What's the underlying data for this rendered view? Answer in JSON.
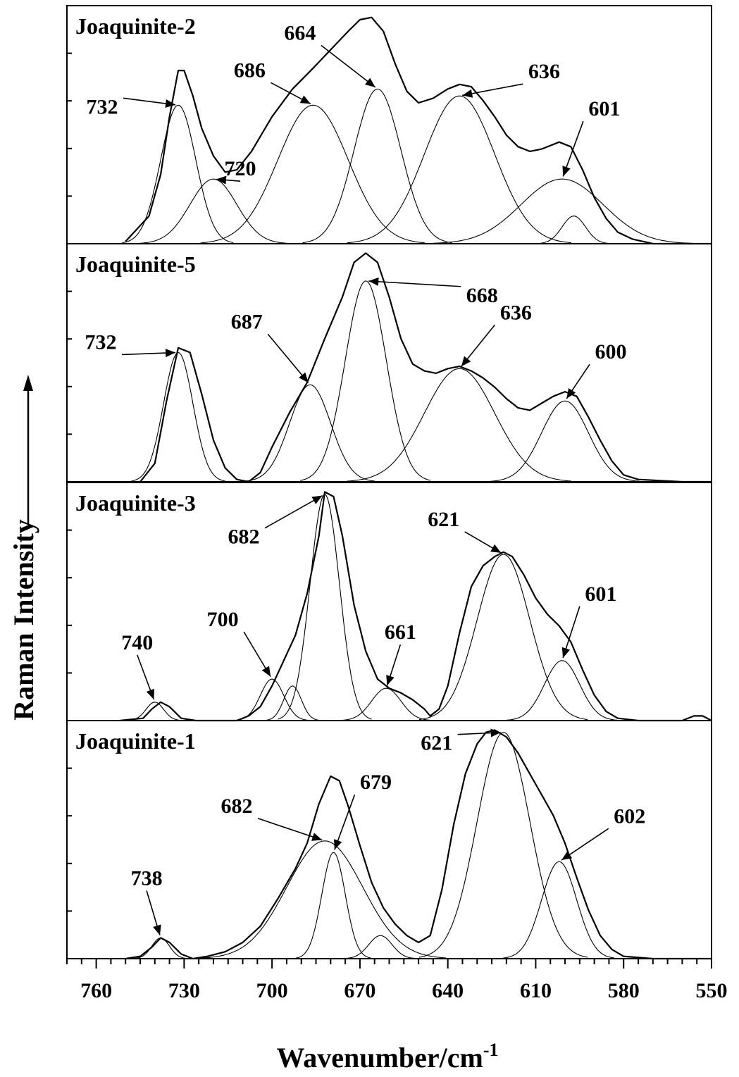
{
  "chart_data": {
    "type": "line",
    "xlabel": "Wavenumber/cm",
    "xlabel_sup": "-1",
    "ylabel": "Raman Intensity",
    "xlim": [
      770,
      550
    ],
    "x_reversed": true,
    "xticks": [
      760,
      730,
      700,
      670,
      640,
      610,
      580,
      550
    ],
    "grid": false,
    "panels": [
      {
        "name": "Joaquinite-2",
        "envelope": [
          [
            750,
            0.01
          ],
          [
            742,
            0.12
          ],
          [
            738,
            0.3
          ],
          [
            735,
            0.55
          ],
          [
            732,
            0.75
          ],
          [
            730,
            0.75
          ],
          [
            727,
            0.64
          ],
          [
            724,
            0.5
          ],
          [
            720,
            0.38
          ],
          [
            716,
            0.31
          ],
          [
            712,
            0.32
          ],
          [
            707,
            0.4
          ],
          [
            700,
            0.55
          ],
          [
            693,
            0.67
          ],
          [
            686,
            0.76
          ],
          [
            680,
            0.84
          ],
          [
            674,
            0.92
          ],
          [
            670,
            0.97
          ],
          [
            666,
            0.98
          ],
          [
            662,
            0.92
          ],
          [
            658,
            0.78
          ],
          [
            654,
            0.66
          ],
          [
            650,
            0.61
          ],
          [
            645,
            0.63
          ],
          [
            640,
            0.67
          ],
          [
            636,
            0.69
          ],
          [
            632,
            0.68
          ],
          [
            628,
            0.62
          ],
          [
            624,
            0.55
          ],
          [
            620,
            0.47
          ],
          [
            616,
            0.42
          ],
          [
            612,
            0.4
          ],
          [
            608,
            0.41
          ],
          [
            602,
            0.44
          ],
          [
            598,
            0.42
          ],
          [
            594,
            0.32
          ],
          [
            590,
            0.2
          ],
          [
            586,
            0.11
          ],
          [
            582,
            0.05
          ],
          [
            577,
            0.02
          ],
          [
            570,
            0.0
          ],
          [
            550,
            0.0
          ]
        ],
        "components": [
          {
            "center": 732,
            "height": 0.6,
            "width": 6
          },
          {
            "center": 720,
            "height": 0.28,
            "width": 8
          },
          {
            "center": 686,
            "height": 0.6,
            "width": 12
          },
          {
            "center": 664,
            "height": 0.67,
            "width": 8
          },
          {
            "center": 636,
            "height": 0.64,
            "width": 12
          },
          {
            "center": 601,
            "height": 0.28,
            "width": 14
          },
          {
            "center": 597,
            "height": 0.12,
            "width": 4
          }
        ],
        "annotations": [
          {
            "label": "732",
            "x": 732,
            "y": 0.6
          },
          {
            "label": "720",
            "x": 720,
            "y": 0.28
          },
          {
            "label": "686",
            "x": 686,
            "y": 0.6
          },
          {
            "label": "664",
            "x": 664,
            "y": 0.67
          },
          {
            "label": "636",
            "x": 636,
            "y": 0.64
          },
          {
            "label": "601",
            "x": 601,
            "y": 0.28
          }
        ]
      },
      {
        "name": "Joaquinite-5",
        "envelope": [
          [
            745,
            0.0
          ],
          [
            740,
            0.08
          ],
          [
            736,
            0.35
          ],
          [
            732,
            0.58
          ],
          [
            728,
            0.56
          ],
          [
            724,
            0.38
          ],
          [
            720,
            0.18
          ],
          [
            716,
            0.06
          ],
          [
            712,
            0.01
          ],
          [
            708,
            0.0
          ],
          [
            704,
            0.04
          ],
          [
            700,
            0.15
          ],
          [
            694,
            0.3
          ],
          [
            688,
            0.43
          ],
          [
            682,
            0.62
          ],
          [
            676,
            0.8
          ],
          [
            672,
            0.95
          ],
          [
            668,
            0.99
          ],
          [
            664,
            0.95
          ],
          [
            660,
            0.8
          ],
          [
            656,
            0.62
          ],
          [
            652,
            0.51
          ],
          [
            648,
            0.48
          ],
          [
            644,
            0.47
          ],
          [
            640,
            0.49
          ],
          [
            636,
            0.5
          ],
          [
            632,
            0.48
          ],
          [
            628,
            0.45
          ],
          [
            624,
            0.41
          ],
          [
            620,
            0.36
          ],
          [
            616,
            0.32
          ],
          [
            612,
            0.31
          ],
          [
            608,
            0.34
          ],
          [
            604,
            0.37
          ],
          [
            600,
            0.39
          ],
          [
            596,
            0.37
          ],
          [
            592,
            0.28
          ],
          [
            588,
            0.18
          ],
          [
            584,
            0.09
          ],
          [
            580,
            0.03
          ],
          [
            575,
            0.01
          ],
          [
            560,
            0.0
          ],
          [
            550,
            0.0
          ]
        ],
        "components": [
          {
            "center": 732,
            "height": 0.56,
            "width": 5
          },
          {
            "center": 687,
            "height": 0.42,
            "width": 7
          },
          {
            "center": 668,
            "height": 0.87,
            "width": 7
          },
          {
            "center": 636,
            "height": 0.49,
            "width": 12
          },
          {
            "center": 600,
            "height": 0.35,
            "width": 8
          }
        ],
        "annotations": [
          {
            "label": "732",
            "x": 732,
            "y": 0.56
          },
          {
            "label": "687",
            "x": 687,
            "y": 0.42
          },
          {
            "label": "668",
            "x": 668,
            "y": 0.87
          },
          {
            "label": "636",
            "x": 636,
            "y": 0.49
          },
          {
            "label": "600",
            "x": 600,
            "y": 0.35
          }
        ]
      },
      {
        "name": "Joaquinite-3",
        "envelope": [
          [
            752,
            0.0
          ],
          [
            744,
            0.01
          ],
          [
            741,
            0.05
          ],
          [
            738,
            0.08
          ],
          [
            735,
            0.06
          ],
          [
            731,
            0.01
          ],
          [
            726,
            0.0
          ],
          [
            712,
            0.0
          ],
          [
            708,
            0.02
          ],
          [
            704,
            0.06
          ],
          [
            700,
            0.15
          ],
          [
            696,
            0.26
          ],
          [
            692,
            0.37
          ],
          [
            688,
            0.55
          ],
          [
            684,
            0.8
          ],
          [
            682,
            0.99
          ],
          [
            679,
            0.97
          ],
          [
            676,
            0.8
          ],
          [
            672,
            0.5
          ],
          [
            668,
            0.3
          ],
          [
            664,
            0.18
          ],
          [
            660,
            0.14
          ],
          [
            656,
            0.12
          ],
          [
            652,
            0.09
          ],
          [
            648,
            0.05
          ],
          [
            646,
            0.02
          ],
          [
            643,
            0.05
          ],
          [
            640,
            0.15
          ],
          [
            636,
            0.38
          ],
          [
            632,
            0.58
          ],
          [
            628,
            0.67
          ],
          [
            624,
            0.71
          ],
          [
            621,
            0.73
          ],
          [
            618,
            0.71
          ],
          [
            614,
            0.63
          ],
          [
            610,
            0.53
          ],
          [
            606,
            0.46
          ],
          [
            602,
            0.41
          ],
          [
            598,
            0.34
          ],
          [
            594,
            0.22
          ],
          [
            590,
            0.11
          ],
          [
            586,
            0.04
          ],
          [
            582,
            0.01
          ],
          [
            575,
            0.0
          ],
          [
            560,
            0.0
          ],
          [
            556,
            0.02
          ],
          [
            553,
            0.02
          ],
          [
            550,
            0.0
          ]
        ],
        "components": [
          {
            "center": 740,
            "height": 0.08,
            "width": 3
          },
          {
            "center": 700,
            "height": 0.18,
            "width": 4
          },
          {
            "center": 693,
            "height": 0.15,
            "width": 3
          },
          {
            "center": 682,
            "height": 0.98,
            "width": 5
          },
          {
            "center": 661,
            "height": 0.14,
            "width": 5
          },
          {
            "center": 621,
            "height": 0.72,
            "width": 9
          },
          {
            "center": 601,
            "height": 0.26,
            "width": 6
          }
        ],
        "annotations": [
          {
            "label": "740",
            "x": 740,
            "y": 0.08
          },
          {
            "label": "700",
            "x": 700,
            "y": 0.18
          },
          {
            "label": "682",
            "x": 682,
            "y": 0.98
          },
          {
            "label": "661",
            "x": 661,
            "y": 0.14
          },
          {
            "label": "621",
            "x": 621,
            "y": 0.72
          },
          {
            "label": "601",
            "x": 601,
            "y": 0.26
          }
        ]
      },
      {
        "name": "Joaquinite-1",
        "envelope": [
          [
            750,
            0.0
          ],
          [
            745,
            0.01
          ],
          [
            741,
            0.05
          ],
          [
            738,
            0.09
          ],
          [
            735,
            0.07
          ],
          [
            731,
            0.02
          ],
          [
            727,
            0.0
          ],
          [
            722,
            0.01
          ],
          [
            716,
            0.03
          ],
          [
            710,
            0.07
          ],
          [
            704,
            0.14
          ],
          [
            698,
            0.26
          ],
          [
            692,
            0.39
          ],
          [
            688,
            0.5
          ],
          [
            684,
            0.67
          ],
          [
            680,
            0.79
          ],
          [
            677,
            0.77
          ],
          [
            674,
            0.66
          ],
          [
            670,
            0.49
          ],
          [
            666,
            0.33
          ],
          [
            662,
            0.22
          ],
          [
            658,
            0.15
          ],
          [
            654,
            0.1
          ],
          [
            650,
            0.07
          ],
          [
            646,
            0.1
          ],
          [
            642,
            0.3
          ],
          [
            638,
            0.58
          ],
          [
            634,
            0.8
          ],
          [
            630,
            0.93
          ],
          [
            627,
            0.98
          ],
          [
            624,
            0.99
          ],
          [
            620,
            0.96
          ],
          [
            616,
            0.89
          ],
          [
            612,
            0.8
          ],
          [
            608,
            0.71
          ],
          [
            604,
            0.62
          ],
          [
            600,
            0.5
          ],
          [
            596,
            0.35
          ],
          [
            592,
            0.21
          ],
          [
            588,
            0.1
          ],
          [
            584,
            0.04
          ],
          [
            580,
            0.01
          ],
          [
            570,
            0.0
          ],
          [
            550,
            0.0
          ]
        ],
        "components": [
          {
            "center": 738,
            "height": 0.09,
            "width": 3
          },
          {
            "center": 682,
            "height": 0.51,
            "width": 13
          },
          {
            "center": 679,
            "height": 0.46,
            "width": 4
          },
          {
            "center": 663,
            "height": 0.1,
            "width": 4
          },
          {
            "center": 621,
            "height": 0.98,
            "width": 9
          },
          {
            "center": 602,
            "height": 0.42,
            "width": 6
          }
        ],
        "annotations": [
          {
            "label": "738",
            "x": 738,
            "y": 0.09
          },
          {
            "label": "682",
            "x": 682,
            "y": 0.51
          },
          {
            "label": "679",
            "x": 679,
            "y": 0.46
          },
          {
            "label": "621",
            "x": 621,
            "y": 0.98
          },
          {
            "label": "602",
            "x": 602,
            "y": 0.42
          }
        ]
      }
    ]
  }
}
